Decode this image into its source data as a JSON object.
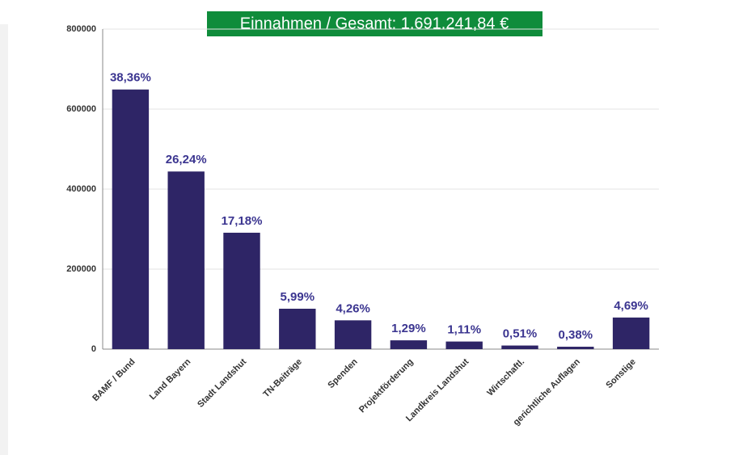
{
  "chart_data": {
    "type": "bar",
    "title": "Einnahmen / Gesamt: 1.691.241,84 €",
    "categories": [
      "BAMF / Bund",
      "Land Bayern",
      "Stadt Landshut",
      "TN-Beiträge",
      "Spenden",
      "Projektförderung",
      "Landkreis Landshut",
      "Wirtschaftl.",
      "gerichtliche Auflagen",
      "Sonstige"
    ],
    "values": [
      649000,
      444000,
      291000,
      101000,
      72000,
      22000,
      19000,
      9000,
      6000,
      79000
    ],
    "value_labels": [
      "38,36%",
      "26,24%",
      "17,18%",
      "5,99%",
      "4,26%",
      "1,29%",
      "1,11%",
      "0,51%",
      "0,38%",
      "4,69%"
    ],
    "color": "#2e2566",
    "ylim": [
      0,
      800000
    ],
    "yticks": [
      0,
      200000,
      400000,
      600000,
      800000
    ],
    "grid": true
  }
}
